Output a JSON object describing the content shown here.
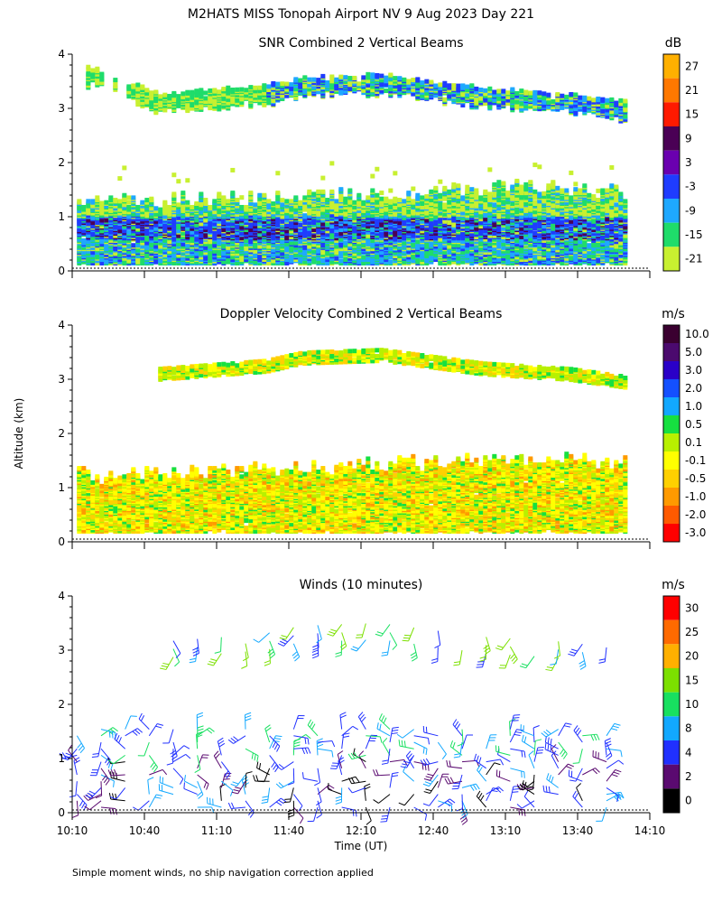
{
  "figure": {
    "title": "M2HATS MISS Tonopah Airport NV   9 Aug 2023 Day 221",
    "ylabel": "Altitude (km)",
    "xlabel": "Time (UT)",
    "footnote": "Simple moment winds, no ship navigation correction applied"
  },
  "chart_data": [
    {
      "type": "heatmap",
      "title": "SNR Combined 2 Vertical Beams",
      "unit": "dB",
      "ylim": [
        0,
        4
      ],
      "yticks": [
        "0",
        "1",
        "2",
        "3",
        "4"
      ],
      "xlim": [
        "10:10",
        "14:10"
      ],
      "xticks": [
        "10:10",
        "10:40",
        "11:10",
        "11:40",
        "12:10",
        "12:40",
        "13:10",
        "13:40",
        "14:10"
      ],
      "show_xtick_labels": false,
      "colorbar": {
        "labels": [
          "27",
          "21",
          "15",
          "9",
          "3",
          "-3",
          "-9",
          "-15",
          "-21"
        ],
        "colors": [
          "#ffb000",
          "#ff7800",
          "#ff1a00",
          "#4a0055",
          "#6a00b0",
          "#1f3cff",
          "#1ea8ff",
          "#1fdc6a",
          "#c8f030"
        ]
      },
      "features": {
        "upper_layer_height_km": [
          [
            10.3,
            3.6
          ],
          [
            10.75,
            3.1
          ],
          [
            11.5,
            3.25
          ],
          [
            11.75,
            3.4
          ],
          [
            12.3,
            3.45
          ],
          [
            13.0,
            3.2
          ],
          [
            13.6,
            3.1
          ],
          [
            14.0,
            2.95
          ]
        ],
        "lower_layer_top_km": [
          [
            10.3,
            1.2
          ],
          [
            11.5,
            1.3
          ],
          [
            12.5,
            1.4
          ],
          [
            13.3,
            1.5
          ],
          [
            14.0,
            1.4
          ]
        ],
        "high_snr_core_km": [
          0.55,
          1.0
        ]
      }
    },
    {
      "type": "heatmap",
      "title": "Doppler Velocity Combined 2 Vertical Beams",
      "unit": "m/s",
      "ylim": [
        0,
        4
      ],
      "yticks": [
        "0",
        "1",
        "2",
        "3",
        "4"
      ],
      "xlim": [
        "10:10",
        "14:10"
      ],
      "xticks": [
        "10:10",
        "10:40",
        "11:10",
        "11:40",
        "12:10",
        "12:40",
        "13:10",
        "13:40",
        "14:10"
      ],
      "show_xtick_labels": false,
      "colorbar": {
        "labels": [
          "10.0",
          "5.0",
          "3.0",
          "2.0",
          "1.0",
          "0.5",
          "0.1",
          "-0.1",
          "-0.5",
          "-1.0",
          "-2.0",
          "-3.0"
        ],
        "colors": [
          "#3a0030",
          "#4b0a6e",
          "#2a00c8",
          "#1450ff",
          "#12a8ff",
          "#16e040",
          "#b8f000",
          "#ffff00",
          "#ffd000",
          "#ff9a00",
          "#ff5a00",
          "#ff0000"
        ]
      }
    },
    {
      "type": "scatter",
      "subtype": "wind-barbs",
      "title": "Winds (10 minutes)",
      "unit": "m/s",
      "ylim": [
        0,
        4
      ],
      "yticks": [
        "0",
        "1",
        "2",
        "3",
        "4"
      ],
      "xlim": [
        "10:10",
        "14:10"
      ],
      "xticks": [
        "10:10",
        "10:40",
        "11:10",
        "11:40",
        "12:10",
        "12:40",
        "13:10",
        "13:40",
        "14:10"
      ],
      "show_xtick_labels": true,
      "colorbar": {
        "labels": [
          "30",
          "25",
          "20",
          "15",
          "10",
          "8",
          "4",
          "2",
          "0"
        ],
        "colors": [
          "#ff0000",
          "#ff6a00",
          "#ffb000",
          "#7ce000",
          "#18e060",
          "#12a8ff",
          "#2030ff",
          "#5a0a70",
          "#000000"
        ]
      }
    }
  ]
}
